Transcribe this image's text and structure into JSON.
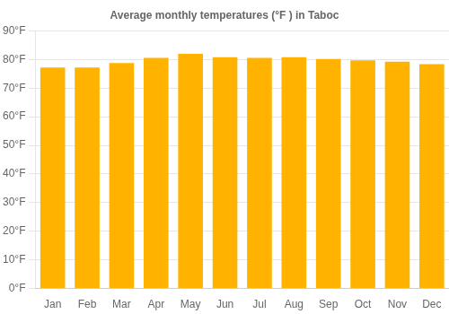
{
  "chart_data": {
    "type": "bar",
    "title": "Average monthly temperatures (°F ) in Taboc",
    "categories": [
      "Jan",
      "Feb",
      "Mar",
      "Apr",
      "May",
      "Jun",
      "Jul",
      "Aug",
      "Sep",
      "Oct",
      "Nov",
      "Dec"
    ],
    "values": [
      77.2,
      77.2,
      78.8,
      80.6,
      82.0,
      80.8,
      80.6,
      80.8,
      80.2,
      79.7,
      79.2,
      78.4
    ],
    "color": "#FFB300",
    "ylim": [
      0,
      90
    ],
    "yticks": [
      {
        "value": 0,
        "label": "0°F"
      },
      {
        "value": 10,
        "label": "10°F"
      },
      {
        "value": 20,
        "label": "20°F"
      },
      {
        "value": 30,
        "label": "30°F"
      },
      {
        "value": 40,
        "label": "40°F"
      },
      {
        "value": 50,
        "label": "50°F"
      },
      {
        "value": 60,
        "label": "60°F"
      },
      {
        "value": 70,
        "label": "70°F"
      },
      {
        "value": 80,
        "label": "80°F"
      },
      {
        "value": 90,
        "label": "90°F"
      }
    ],
    "grid": true
  }
}
